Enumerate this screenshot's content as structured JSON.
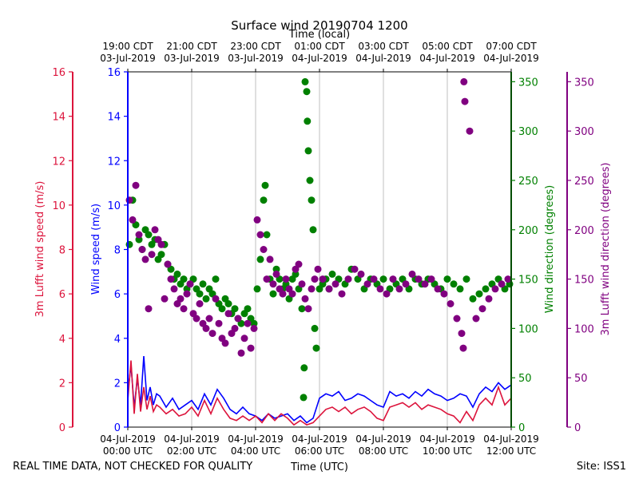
{
  "chart_data": {
    "type": "scatter",
    "title": "Surface wind 20190704 1200",
    "top_axis_label": "Time (local)",
    "xlabel": "Time (UTC)",
    "footer_left": "REAL TIME DATA, NOT CHECKED FOR QUALITY",
    "footer_right": "Site: ISS1",
    "x_range_hours": [
      0,
      12
    ],
    "bottom_ticks": [
      {
        "hour": 0,
        "line1": "04-Jul-2019",
        "line2": "00:00 UTC"
      },
      {
        "hour": 2,
        "line1": "04-Jul-2019",
        "line2": "02:00 UTC"
      },
      {
        "hour": 4,
        "line1": "04-Jul-2019",
        "line2": "04:00 UTC"
      },
      {
        "hour": 6,
        "line1": "04-Jul-2019",
        "line2": "06:00 UTC"
      },
      {
        "hour": 8,
        "line1": "04-Jul-2019",
        "line2": "08:00 UTC"
      },
      {
        "hour": 10,
        "line1": "04-Jul-2019",
        "line2": "10:00 UTC"
      },
      {
        "hour": 12,
        "line1": "04-Jul-2019",
        "line2": "12:00 UTC"
      }
    ],
    "top_ticks": [
      {
        "hour": 0,
        "line1": "19:00 CDT",
        "line2": "03-Jul-2019"
      },
      {
        "hour": 2,
        "line1": "21:00 CDT",
        "line2": "03-Jul-2019"
      },
      {
        "hour": 4,
        "line1": "23:00 CDT",
        "line2": "03-Jul-2019"
      },
      {
        "hour": 6,
        "line1": "01:00 CDT",
        "line2": "04-Jul-2019"
      },
      {
        "hour": 8,
        "line1": "03:00 CDT",
        "line2": "04-Jul-2019"
      },
      {
        "hour": 10,
        "line1": "05:00 CDT",
        "line2": "04-Jul-2019"
      },
      {
        "hour": 12,
        "line1": "07:00 CDT",
        "line2": "04-Jul-2019"
      }
    ],
    "axes": {
      "lufft_speed": {
        "label": "3m Lufft wind speed (m/s)",
        "range": [
          0,
          16
        ],
        "ticks": [
          0,
          2,
          4,
          6,
          8,
          10,
          12,
          14,
          16
        ],
        "color": "#dc143c"
      },
      "wind_speed": {
        "label": "Wind speed (m/s)",
        "range": [
          0,
          16
        ],
        "ticks": [
          0,
          2,
          4,
          6,
          8,
          10,
          12,
          14,
          16
        ],
        "color": "#0000ff"
      },
      "wind_dir": {
        "label": "Wind direction (degrees)",
        "range": [
          0,
          360
        ],
        "ticks": [
          0,
          50,
          100,
          150,
          200,
          250,
          300,
          350
        ],
        "color": "#008000"
      },
      "lufft_dir": {
        "label": "3m Lufft wind direction (degrees)",
        "range": [
          0,
          360
        ],
        "ticks": [
          0,
          50,
          100,
          150,
          200,
          250,
          300,
          350
        ],
        "color": "#800080"
      }
    },
    "series": [
      {
        "name": "Wind speed",
        "kind": "line",
        "axis": "wind_speed",
        "color": "#0000ff",
        "x": [
          0,
          0.1,
          0.2,
          0.3,
          0.4,
          0.5,
          0.6,
          0.7,
          0.8,
          0.9,
          1.0,
          1.2,
          1.4,
          1.6,
          1.8,
          2.0,
          2.2,
          2.4,
          2.6,
          2.8,
          3.0,
          3.2,
          3.4,
          3.6,
          3.8,
          4.0,
          4.2,
          4.4,
          4.6,
          4.8,
          5.0,
          5.2,
          5.4,
          5.6,
          5.8,
          6.0,
          6.2,
          6.4,
          6.6,
          6.8,
          7.0,
          7.2,
          7.4,
          7.6,
          7.8,
          8.0,
          8.2,
          8.4,
          8.6,
          8.8,
          9.0,
          9.2,
          9.4,
          9.6,
          9.8,
          10.0,
          10.2,
          10.4,
          10.6,
          10.8,
          11.0,
          11.2,
          11.4,
          11.6,
          11.8,
          12.0
        ],
        "values": [
          1.5,
          2.8,
          0.9,
          2.2,
          1.0,
          3.2,
          1.2,
          1.8,
          1.0,
          1.5,
          1.4,
          0.9,
          1.3,
          0.8,
          1.0,
          1.2,
          0.8,
          1.5,
          1.0,
          1.7,
          1.3,
          0.8,
          0.6,
          0.9,
          0.6,
          0.5,
          0.3,
          0.6,
          0.4,
          0.5,
          0.6,
          0.3,
          0.5,
          0.2,
          0.4,
          1.3,
          1.5,
          1.4,
          1.6,
          1.2,
          1.3,
          1.5,
          1.4,
          1.2,
          1.0,
          0.9,
          1.6,
          1.4,
          1.5,
          1.3,
          1.6,
          1.4,
          1.7,
          1.5,
          1.4,
          1.2,
          1.3,
          1.5,
          1.4,
          0.9,
          1.5,
          1.8,
          1.6,
          2.0,
          1.7,
          1.9
        ]
      },
      {
        "name": "3m Lufft wind speed",
        "kind": "line",
        "axis": "lufft_speed",
        "color": "#dc143c",
        "x": [
          0,
          0.1,
          0.2,
          0.3,
          0.4,
          0.5,
          0.6,
          0.7,
          0.8,
          0.9,
          1.0,
          1.2,
          1.4,
          1.6,
          1.8,
          2.0,
          2.2,
          2.4,
          2.6,
          2.8,
          3.0,
          3.2,
          3.4,
          3.6,
          3.8,
          4.0,
          4.2,
          4.4,
          4.6,
          4.8,
          5.0,
          5.2,
          5.4,
          5.6,
          5.8,
          6.0,
          6.2,
          6.4,
          6.6,
          6.8,
          7.0,
          7.2,
          7.4,
          7.6,
          7.8,
          8.0,
          8.2,
          8.4,
          8.6,
          8.8,
          9.0,
          9.2,
          9.4,
          9.6,
          9.8,
          10.0,
          10.2,
          10.4,
          10.6,
          10.8,
          11.0,
          11.2,
          11.4,
          11.6,
          11.8,
          12.0
        ],
        "values": [
          1.2,
          3.0,
          0.6,
          2.4,
          0.7,
          1.8,
          0.8,
          1.4,
          0.7,
          1.0,
          0.9,
          0.6,
          0.8,
          0.5,
          0.6,
          0.9,
          0.5,
          1.2,
          0.6,
          1.3,
          0.8,
          0.4,
          0.3,
          0.5,
          0.3,
          0.5,
          0.2,
          0.6,
          0.3,
          0.6,
          0.4,
          0.1,
          0.3,
          0.1,
          0.2,
          0.5,
          0.8,
          0.9,
          0.7,
          0.9,
          0.6,
          0.8,
          0.9,
          0.7,
          0.4,
          0.3,
          0.9,
          1.0,
          1.1,
          0.9,
          1.1,
          0.8,
          1.0,
          0.9,
          0.8,
          0.6,
          0.5,
          0.2,
          0.7,
          0.3,
          1.0,
          1.3,
          1.0,
          1.8,
          1.0,
          1.3
        ]
      },
      {
        "name": "Wind direction",
        "kind": "scatter",
        "axis": "wind_dir",
        "color": "#008000",
        "x": [
          0.05,
          0.15,
          0.25,
          0.35,
          0.45,
          0.55,
          0.65,
          0.75,
          0.85,
          0.95,
          1.05,
          1.15,
          1.25,
          1.35,
          1.45,
          1.55,
          1.65,
          1.75,
          1.85,
          1.95,
          2.05,
          2.15,
          2.25,
          2.35,
          2.45,
          2.55,
          2.65,
          2.75,
          2.85,
          2.95,
          3.05,
          3.15,
          3.25,
          3.35,
          3.45,
          3.55,
          3.65,
          3.75,
          3.85,
          3.95,
          4.05,
          4.15,
          4.25,
          4.3,
          4.35,
          4.45,
          4.55,
          4.65,
          4.75,
          4.85,
          4.95,
          5.05,
          5.15,
          5.25,
          5.35,
          5.45,
          5.5,
          5.52,
          5.55,
          5.6,
          5.62,
          5.65,
          5.7,
          5.75,
          5.8,
          5.85,
          5.9,
          6.0,
          6.1,
          6.2,
          6.3,
          6.4,
          6.6,
          6.8,
          7.0,
          7.2,
          7.4,
          7.6,
          7.8,
          8.0,
          8.2,
          8.4,
          8.6,
          8.8,
          9.0,
          9.2,
          9.4,
          9.6,
          9.8,
          10.0,
          10.2,
          10.4,
          10.6,
          10.8,
          11.0,
          11.2,
          11.4,
          11.6,
          11.8,
          11.95
        ],
        "values": [
          185,
          230,
          205,
          190,
          180,
          200,
          195,
          185,
          190,
          170,
          175,
          185,
          165,
          160,
          150,
          155,
          145,
          150,
          140,
          145,
          150,
          140,
          135,
          145,
          130,
          140,
          135,
          150,
          125,
          120,
          130,
          125,
          115,
          120,
          110,
          105,
          115,
          120,
          110,
          105,
          140,
          170,
          230,
          245,
          195,
          150,
          135,
          160,
          150,
          140,
          145,
          130,
          150,
          155,
          140,
          120,
          30,
          60,
          350,
          340,
          310,
          280,
          250,
          230,
          200,
          100,
          80,
          140,
          145,
          150,
          140,
          155,
          150,
          145,
          160,
          150,
          140,
          150,
          145,
          150,
          140,
          145,
          150,
          140,
          150,
          145,
          150,
          145,
          140,
          150,
          145,
          140,
          150,
          130,
          135,
          140,
          145,
          150,
          140,
          145
        ]
      },
      {
        "name": "3m Lufft wind direction",
        "kind": "scatter",
        "axis": "lufft_dir",
        "color": "#800080",
        "x": [
          0.05,
          0.15,
          0.25,
          0.35,
          0.45,
          0.55,
          0.65,
          0.75,
          0.85,
          0.95,
          1.05,
          1.15,
          1.25,
          1.35,
          1.45,
          1.55,
          1.65,
          1.75,
          1.85,
          1.95,
          2.05,
          2.15,
          2.25,
          2.35,
          2.45,
          2.55,
          2.65,
          2.75,
          2.85,
          2.95,
          3.05,
          3.15,
          3.25,
          3.35,
          3.45,
          3.55,
          3.65,
          3.75,
          3.85,
          3.95,
          4.05,
          4.15,
          4.25,
          4.35,
          4.45,
          4.55,
          4.65,
          4.75,
          4.85,
          4.95,
          5.05,
          5.15,
          5.25,
          5.35,
          5.45,
          5.55,
          5.65,
          5.75,
          5.85,
          5.95,
          6.1,
          6.3,
          6.5,
          6.7,
          6.9,
          7.1,
          7.3,
          7.5,
          7.7,
          7.9,
          8.1,
          8.3,
          8.5,
          8.7,
          8.9,
          9.1,
          9.3,
          9.5,
          9.7,
          9.9,
          10.1,
          10.3,
          10.45,
          10.5,
          10.52,
          10.55,
          10.7,
          10.9,
          11.1,
          11.3,
          11.5,
          11.7,
          11.9
        ],
        "values": [
          230,
          210,
          245,
          195,
          180,
          170,
          120,
          175,
          200,
          190,
          185,
          130,
          165,
          150,
          140,
          125,
          130,
          120,
          135,
          145,
          115,
          110,
          125,
          105,
          100,
          110,
          95,
          130,
          105,
          90,
          85,
          115,
          95,
          100,
          110,
          75,
          90,
          105,
          80,
          100,
          210,
          195,
          180,
          150,
          170,
          145,
          155,
          140,
          135,
          150,
          140,
          135,
          160,
          165,
          145,
          130,
          120,
          140,
          150,
          160,
          150,
          140,
          145,
          135,
          150,
          160,
          155,
          145,
          150,
          140,
          135,
          150,
          140,
          145,
          155,
          150,
          145,
          150,
          140,
          135,
          125,
          110,
          95,
          80,
          350,
          330,
          300,
          110,
          120,
          130,
          140,
          145,
          150
        ]
      }
    ]
  }
}
